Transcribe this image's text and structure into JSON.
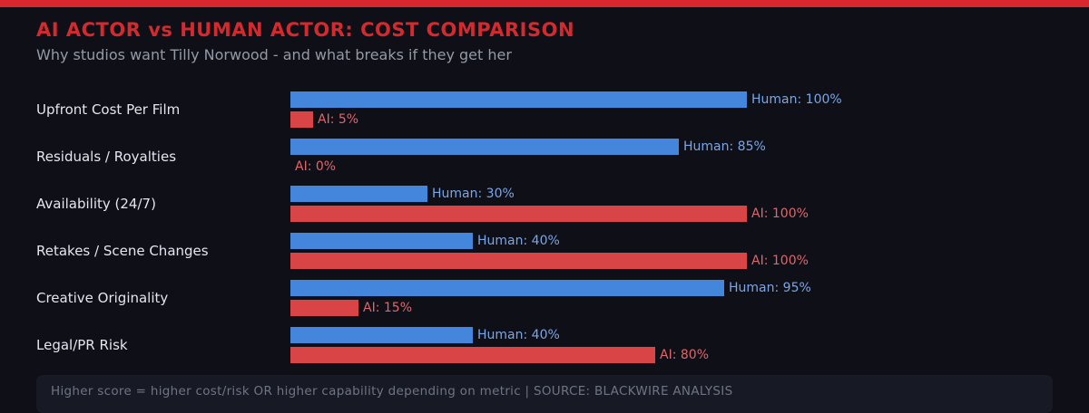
{
  "page": {
    "title": "AI ACTOR vs HUMAN ACTOR: COST COMPARISON",
    "subtitle": "Why studios want Tilly Norwood - and what breaks if they get her",
    "footer_note": "Higher score = higher cost/risk OR higher capability depending on metric | SOURCE: BLACKWIRE ANALYSIS"
  },
  "colors": {
    "background": "#0e0f17",
    "top_strip": "#d8272e",
    "title_text": "#d42a2e",
    "subtitle_text": "#939aa6",
    "category_label_text": "#e3e5f0",
    "human_bar": "#4486db",
    "human_label_text": "#7ba6e6",
    "ai_bar": "#d94547",
    "ai_label_text": "#e0666b",
    "footer_bg": "#171a25",
    "footer_text": "#6e7484"
  },
  "chart_data": {
    "type": "bar",
    "orientation": "horizontal",
    "title": "AI ACTOR vs HUMAN ACTOR: COST COMPARISON",
    "subtitle": "Why studios want Tilly Norwood - and what breaks if they get her",
    "categories": [
      "Upfront Cost Per Film",
      "Residuals / Royalties",
      "Availability (24/7)",
      "Retakes / Scene Changes",
      "Creative Originality",
      "Legal/PR Risk"
    ],
    "series": [
      {
        "name": "Human",
        "values": [
          100,
          85,
          30,
          40,
          95,
          40
        ],
        "color": "#4486db"
      },
      {
        "name": "AI",
        "values": [
          5,
          0,
          100,
          100,
          15,
          80
        ],
        "color": "#d94547"
      }
    ],
    "value_label_format": "{series}: {value}%",
    "xlim": [
      0,
      100
    ],
    "grid": false,
    "legend": "inline-value-labels",
    "annotation": "Higher score = higher cost/risk OR higher capability depending on metric | SOURCE: BLACKWIRE ANALYSIS"
  }
}
